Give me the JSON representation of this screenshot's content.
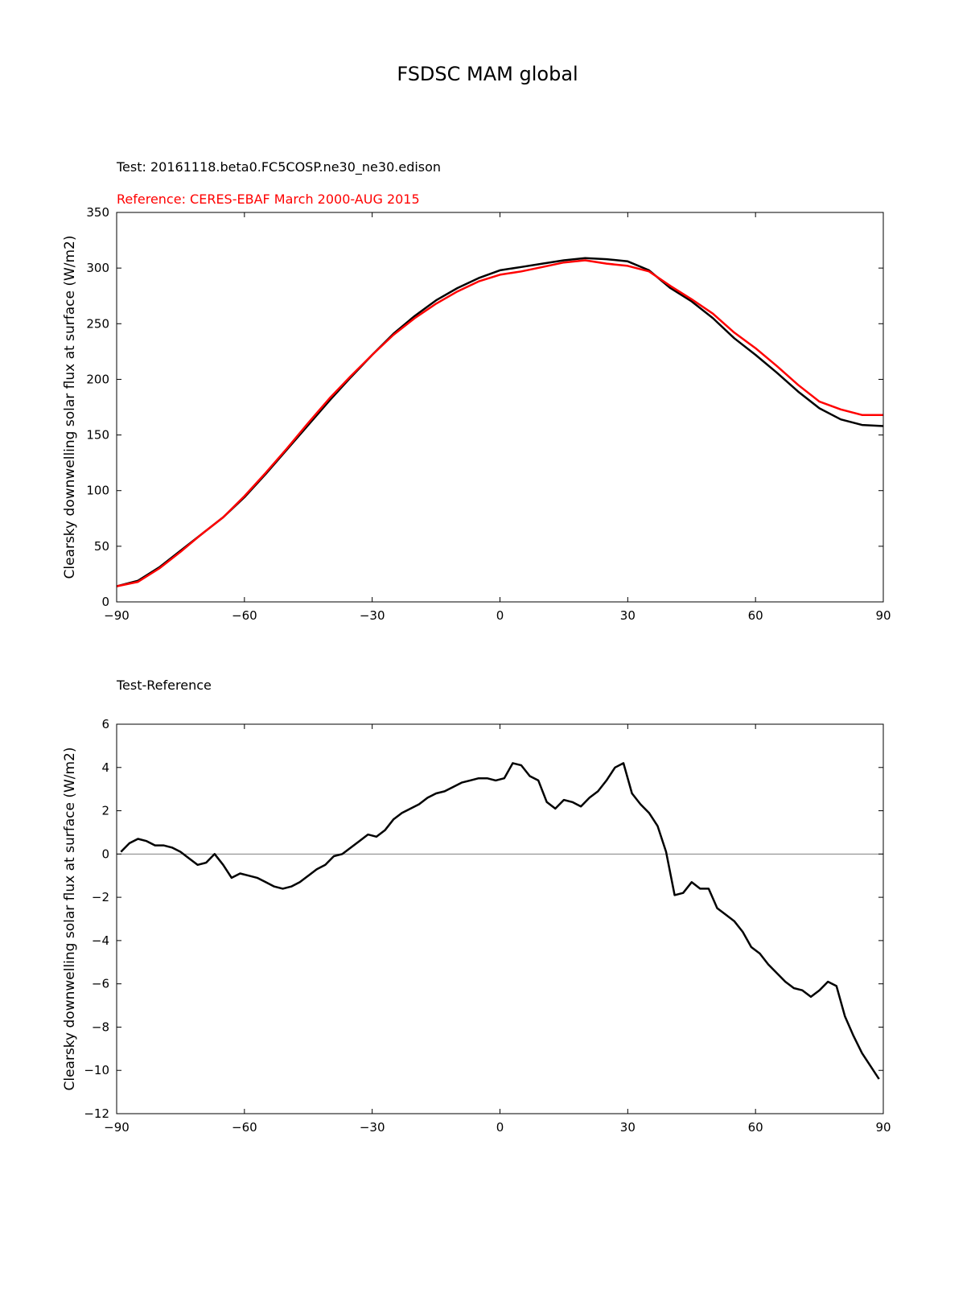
{
  "figure": {
    "title": "FSDSC MAM global",
    "top_test_label": "Test: 20161118.beta0.FC5COSP.ne30_ne30.edison",
    "top_reference_label": "Reference: CERES-EBAF March 2000-AUG 2015",
    "bottom_label": "Test-Reference"
  },
  "colors": {
    "test": "#000000",
    "reference": "#ff0000",
    "zero_line": "#808080"
  },
  "chart_data": [
    {
      "type": "line",
      "title": "",
      "xlabel": "",
      "ylabel": "Clearsky downwelling solar flux at surface (W/m2)",
      "xlim": [
        -90,
        90
      ],
      "ylim": [
        0,
        350
      ],
      "xticks": [
        -90,
        -60,
        -30,
        0,
        30,
        60,
        90
      ],
      "xtick_labels": [
        "−90",
        "−60",
        "−30",
        "0",
        "30",
        "60",
        "90"
      ],
      "yticks": [
        0,
        50,
        100,
        150,
        200,
        250,
        300,
        350
      ],
      "ytick_labels": [
        "0",
        "50",
        "100",
        "150",
        "200",
        "250",
        "300",
        "350"
      ],
      "grid": false,
      "x": [
        -90,
        -85,
        -80,
        -75,
        -70,
        -65,
        -60,
        -55,
        -50,
        -45,
        -40,
        -35,
        -30,
        -25,
        -20,
        -15,
        -10,
        -5,
        0,
        5,
        10,
        15,
        20,
        25,
        30,
        35,
        40,
        45,
        50,
        55,
        60,
        65,
        70,
        75,
        80,
        85,
        90
      ],
      "series": [
        {
          "name": "Test: 20161118.beta0.FC5COSP.ne30_ne30.edison",
          "color": "#000000",
          "values": [
            14,
            19,
            31,
            46,
            61,
            76,
            94,
            115,
            137,
            159,
            181,
            202,
            222,
            241,
            257,
            271,
            282,
            291,
            298,
            301,
            304,
            307,
            309,
            308,
            306,
            298,
            282,
            270,
            255,
            237,
            222,
            206,
            189,
            174,
            164,
            159,
            158
          ]
        },
        {
          "name": "Reference: CERES-EBAF March 2000-AUG 2015",
          "color": "#ff0000",
          "values": [
            14,
            18,
            30,
            45,
            61,
            76,
            95,
            116,
            138,
            161,
            183,
            203,
            222,
            240,
            255,
            268,
            279,
            288,
            294,
            297,
            301,
            305,
            307,
            304,
            302,
            297,
            284,
            272,
            259,
            242,
            228,
            212,
            195,
            180,
            173,
            168,
            168
          ]
        }
      ]
    },
    {
      "type": "line",
      "title": "",
      "xlabel": "",
      "ylabel": "Clearsky downwelling solar flux at surface (W/m2)",
      "xlim": [
        -90,
        90
      ],
      "ylim": [
        -12,
        6
      ],
      "xticks": [
        -90,
        -60,
        -30,
        0,
        30,
        60,
        90
      ],
      "xtick_labels": [
        "−90",
        "−60",
        "−30",
        "0",
        "30",
        "60",
        "90"
      ],
      "yticks": [
        -12,
        -10,
        -8,
        -6,
        -4,
        -2,
        0,
        2,
        4,
        6
      ],
      "ytick_labels": [
        "−12",
        "−10",
        "−8",
        "−6",
        "−4",
        "−2",
        "0",
        "2",
        "4",
        "6"
      ],
      "grid": false,
      "zero_line": true,
      "x": [
        -89,
        -87,
        -85,
        -83,
        -81,
        -79,
        -77,
        -75,
        -73,
        -71,
        -69,
        -67,
        -65,
        -63,
        -61,
        -59,
        -57,
        -55,
        -53,
        -51,
        -49,
        -47,
        -45,
        -43,
        -41,
        -39,
        -37,
        -35,
        -33,
        -31,
        -29,
        -27,
        -25,
        -23,
        -21,
        -19,
        -17,
        -15,
        -13,
        -11,
        -9,
        -7,
        -5,
        -3,
        -1,
        1,
        3,
        5,
        7,
        9,
        11,
        13,
        15,
        17,
        19,
        21,
        23,
        25,
        27,
        29,
        31,
        33,
        35,
        37,
        39,
        41,
        43,
        45,
        47,
        49,
        51,
        53,
        55,
        57,
        59,
        61,
        63,
        65,
        67,
        69,
        71,
        73,
        75,
        77,
        79,
        81,
        83,
        85,
        87,
        89
      ],
      "series": [
        {
          "name": "Test-Reference",
          "color": "#000000",
          "values": [
            0.1,
            0.5,
            0.7,
            0.6,
            0.4,
            0.4,
            0.3,
            0.1,
            -0.2,
            -0.5,
            -0.4,
            0.0,
            -0.5,
            -1.1,
            -0.9,
            -1.0,
            -1.1,
            -1.3,
            -1.5,
            -1.6,
            -1.5,
            -1.3,
            -1.0,
            -0.7,
            -0.5,
            -0.1,
            0.0,
            0.3,
            0.6,
            0.9,
            0.8,
            1.1,
            1.6,
            1.9,
            2.1,
            2.3,
            2.6,
            2.8,
            2.9,
            3.1,
            3.3,
            3.4,
            3.5,
            3.5,
            3.4,
            3.5,
            4.2,
            4.1,
            3.6,
            3.4,
            2.4,
            2.1,
            2.5,
            2.4,
            2.2,
            2.6,
            2.9,
            3.4,
            4.0,
            4.2,
            2.8,
            2.3,
            1.9,
            1.3,
            0.1,
            -1.9,
            -1.8,
            -1.3,
            -1.6,
            -1.6,
            -2.5,
            -2.8,
            -3.1,
            -3.6,
            -4.3,
            -4.6,
            -5.1,
            -5.5,
            -5.9,
            -6.2,
            -6.3,
            -6.6,
            -6.3,
            -5.9,
            -6.1,
            -7.5,
            -8.4,
            -9.2,
            -9.8,
            -10.4
          ]
        }
      ]
    }
  ]
}
